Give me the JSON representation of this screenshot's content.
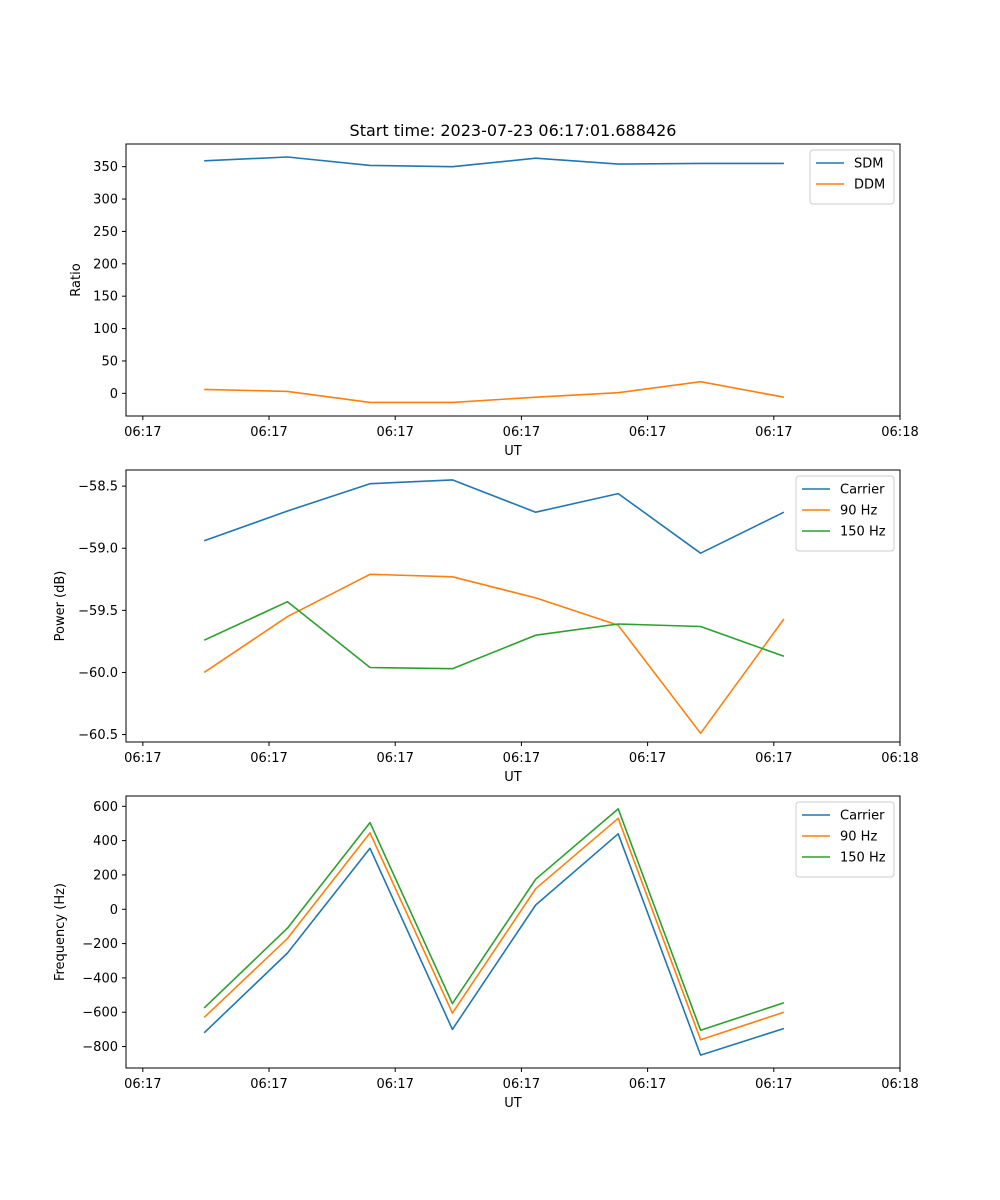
{
  "title": "Start time: 2023-07-23 06:17:01.688426",
  "chart_data": [
    {
      "type": "line",
      "title": "Start time: 2023-07-23 06:17:01.688426",
      "xlabel": "UT",
      "ylabel": "Ratio",
      "xlim": [
        0,
        9.2
      ],
      "ylim": [
        -35,
        385
      ],
      "x_ticks": [
        0.2,
        1.7,
        3.2,
        4.7,
        6.2,
        7.7,
        9.2
      ],
      "x_tick_labels": [
        "06:17",
        "06:17",
        "06:17",
        "06:17",
        "06:17",
        "06:17",
        "06:18"
      ],
      "y_ticks": [
        0,
        50,
        100,
        150,
        200,
        250,
        300,
        350
      ],
      "y_tick_labels": [
        "0",
        "50",
        "100",
        "150",
        "200",
        "250",
        "300",
        "350"
      ],
      "legend_position": "top-right",
      "x": [
        0.93,
        1.92,
        2.9,
        3.88,
        4.87,
        5.85,
        6.83,
        7.82
      ],
      "series": [
        {
          "name": "SDM",
          "color": "#1f77b4",
          "values": [
            359,
            365,
            352,
            350,
            363,
            354,
            355,
            355
          ]
        },
        {
          "name": "DDM",
          "color": "#ff7f0e",
          "values": [
            6,
            3,
            -14,
            -14,
            -6,
            1,
            18,
            -6
          ]
        }
      ]
    },
    {
      "type": "line",
      "xlabel": "UT",
      "ylabel": "Power (dB)",
      "xlim": [
        0,
        9.2
      ],
      "ylim": [
        -60.56,
        -58.37
      ],
      "x_ticks": [
        0.2,
        1.7,
        3.2,
        4.7,
        6.2,
        7.7,
        9.2
      ],
      "x_tick_labels": [
        "06:17",
        "06:17",
        "06:17",
        "06:17",
        "06:17",
        "06:17",
        "06:18"
      ],
      "y_ticks": [
        -58.5,
        -59.0,
        -59.5,
        -60.0,
        -60.5
      ],
      "y_tick_labels": [
        "−58.5",
        "−59.0",
        "−59.5",
        "−60.0",
        "−60.5"
      ],
      "legend_position": "top-right",
      "x": [
        0.93,
        1.92,
        2.9,
        3.88,
        4.87,
        5.85,
        6.83,
        7.82
      ],
      "series": [
        {
          "name": "Carrier",
          "color": "#1f77b4",
          "values": [
            -58.94,
            -58.7,
            -58.48,
            -58.45,
            -58.71,
            -58.56,
            -59.04,
            -58.71
          ]
        },
        {
          "name": "90 Hz",
          "color": "#ff7f0e",
          "values": [
            -60.0,
            -59.55,
            -59.21,
            -59.23,
            -59.4,
            -59.62,
            -60.49,
            -59.57
          ]
        },
        {
          "name": "150 Hz",
          "color": "#2ca02c",
          "values": [
            -59.74,
            -59.43,
            -59.96,
            -59.97,
            -59.7,
            -59.61,
            -59.63,
            -59.87
          ]
        }
      ]
    },
    {
      "type": "line",
      "xlabel": "UT",
      "ylabel": "Frequency (Hz)",
      "xlim": [
        0,
        9.2
      ],
      "ylim": [
        -925,
        660
      ],
      "x_ticks": [
        0.2,
        1.7,
        3.2,
        4.7,
        6.2,
        7.7,
        9.2
      ],
      "x_tick_labels": [
        "06:17",
        "06:17",
        "06:17",
        "06:17",
        "06:17",
        "06:17",
        "06:18"
      ],
      "y_ticks": [
        600,
        400,
        200,
        0,
        -200,
        -400,
        -600,
        -800
      ],
      "y_tick_labels": [
        "600",
        "400",
        "200",
        "0",
        "−200",
        "−400",
        "−600",
        "−800"
      ],
      "legend_position": "top-right",
      "x": [
        0.93,
        1.92,
        2.9,
        3.88,
        4.87,
        5.85,
        6.83,
        7.82
      ],
      "series": [
        {
          "name": "Carrier",
          "color": "#1f77b4",
          "values": [
            -720,
            -255,
            355,
            -700,
            25,
            440,
            -850,
            -695
          ]
        },
        {
          "name": "90 Hz",
          "color": "#ff7f0e",
          "values": [
            -630,
            -170,
            445,
            -605,
            120,
            530,
            -760,
            -600
          ]
        },
        {
          "name": "150 Hz",
          "color": "#2ca02c",
          "values": [
            -575,
            -110,
            505,
            -550,
            175,
            585,
            -705,
            -545
          ]
        }
      ]
    }
  ]
}
